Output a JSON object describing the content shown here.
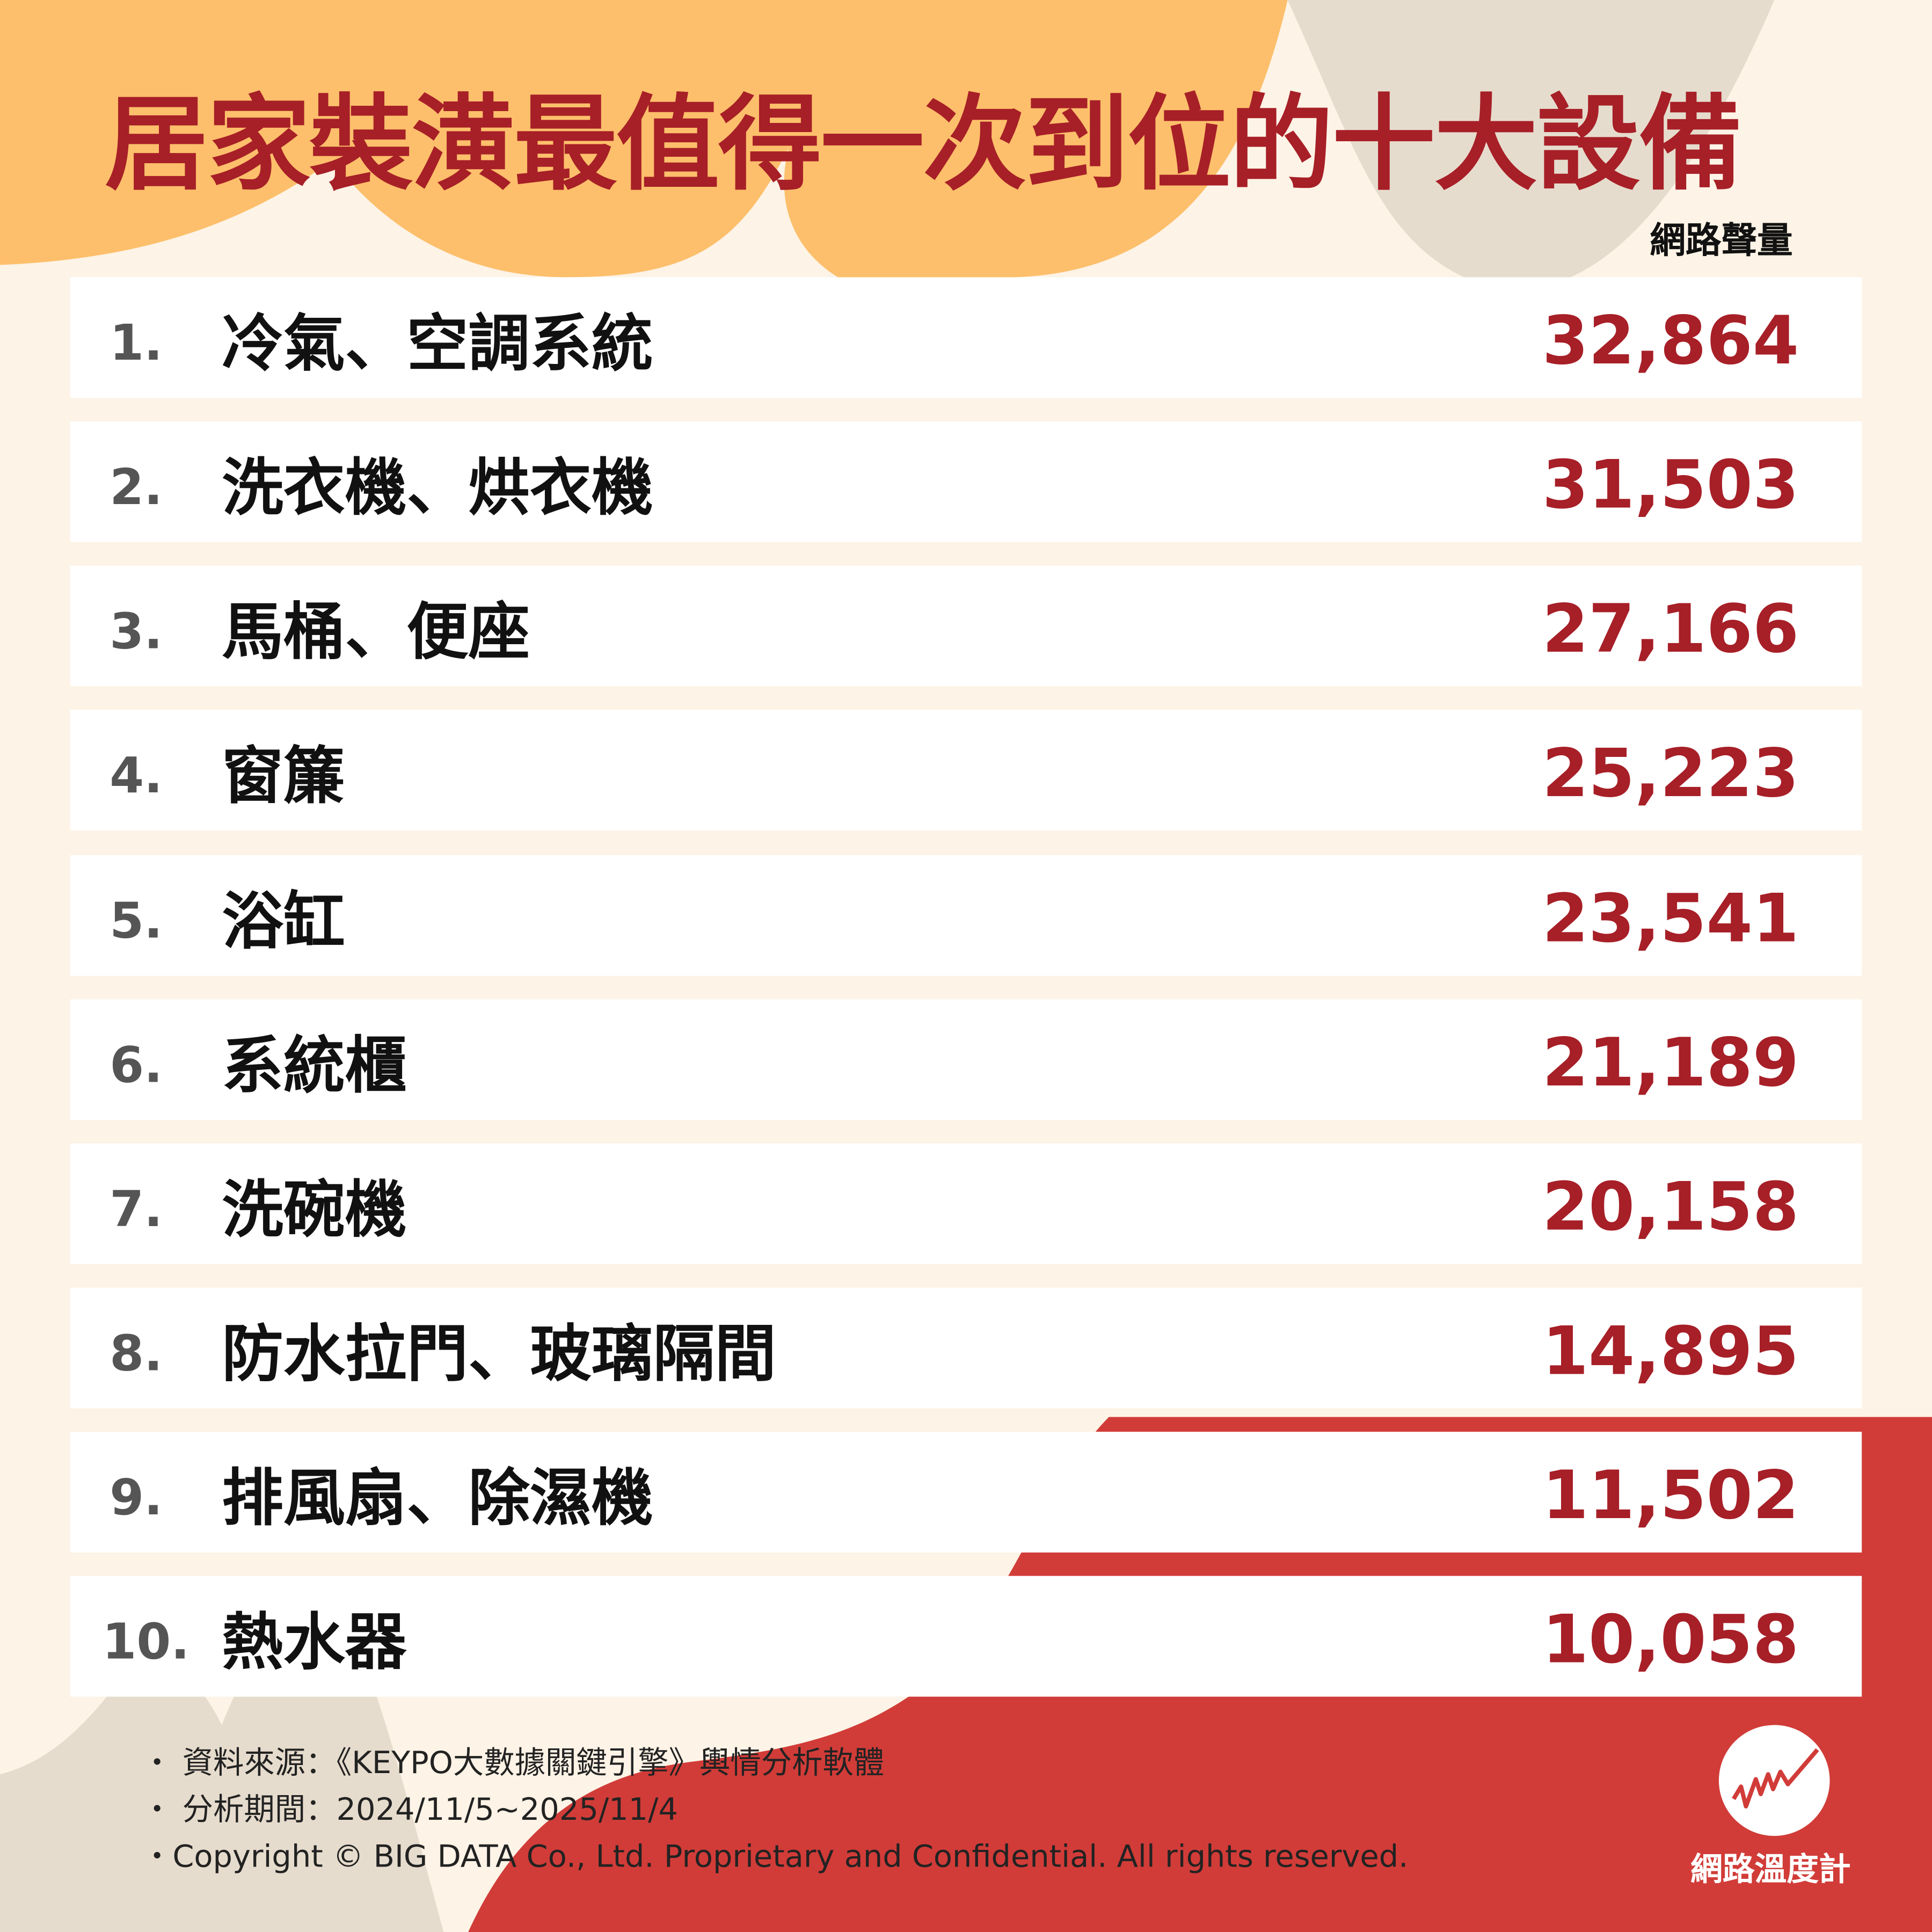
{
  "title": "居家裝潢最值得一次到位的十大設備",
  "column_header": "網路聲量",
  "items": [
    {
      "rank": "1.",
      "name": "冷氣、空調系統",
      "value": "32,864"
    },
    {
      "rank": "2.",
      "name": "洗衣機、烘衣機",
      "value": "31,503"
    },
    {
      "rank": "3.",
      "name": "馬桶、便座",
      "value": "27,166"
    },
    {
      "rank": "4.",
      "name": "窗簾",
      "value": "25,223"
    },
    {
      "rank": "5.",
      "name": "浴缸",
      "value": "23,541"
    },
    {
      "rank": "6.",
      "name": "系統櫃",
      "value": "21,189"
    },
    {
      "rank": "7.",
      "name": "洗碗機",
      "value": "20,158"
    },
    {
      "rank": "8.",
      "name": "防水拉門、玻璃隔間",
      "value": "14,895"
    },
    {
      "rank": "9.",
      "name": "排風扇、除濕機",
      "value": "11,502"
    },
    {
      "rank": "10.",
      "name": "熱水器",
      "value": "10,058"
    }
  ],
  "footer": {
    "source": "・ 資料來源：《KEYPO大數據關鍵引擎》輿情分析軟體",
    "period": "・ 分析期間：2024/11/5~2025/11/4",
    "copyright": "・Copyright © BIG DATA Co., Ltd. Proprietary and Confidential. All rights reserved."
  },
  "logo": {
    "text": "網路溫度計",
    "icon": "trend-line-icon"
  },
  "colors": {
    "accent": "#a71f27",
    "background": "#fdf3e6",
    "orange": "#fdbf6b",
    "beige": "#e6dccd",
    "red": "#d13c38"
  }
}
